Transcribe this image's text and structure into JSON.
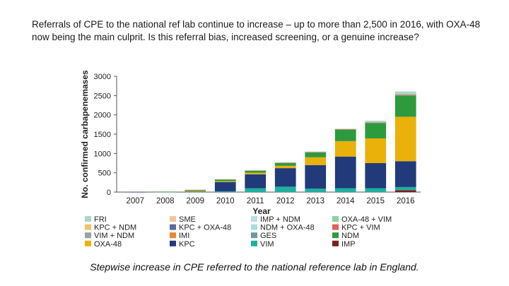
{
  "heading": "Referrals of CPE to the national ref lab continue to increase – up to more than 2,500 in 2016, with OXA-48 now being the main culprit. Is this referral bias, increased screening, or a genuine increase?",
  "caption": "Stepwise increase in CPE referred to the national reference lab in England.",
  "chart_data": {
    "type": "bar",
    "stacked": true,
    "xlabel": "Year",
    "ylabel": "No. confirmed carbapenemases",
    "ylim": [
      0,
      3000
    ],
    "yticks": [
      0,
      500,
      1000,
      1500,
      2000,
      2500,
      3000
    ],
    "grid": false,
    "legend_position": "bottom",
    "categories": [
      "2007",
      "2008",
      "2009",
      "2010",
      "2011",
      "2012",
      "2013",
      "2014",
      "2015",
      "2016"
    ],
    "series": [
      {
        "name": "IMP",
        "color": "#7b1e1e",
        "values": [
          0,
          0,
          0,
          0,
          0,
          0,
          0,
          0,
          0,
          50
        ]
      },
      {
        "name": "VIM",
        "color": "#1fb0a0",
        "values": [
          0,
          2,
          5,
          20,
          100,
          140,
          90,
          100,
          100,
          80
        ]
      },
      {
        "name": "KPC",
        "color": "#213a7a",
        "values": [
          2,
          5,
          10,
          240,
          360,
          480,
          610,
          820,
          650,
          670
        ]
      },
      {
        "name": "OXA-48",
        "color": "#e9b10a",
        "values": [
          0,
          2,
          20,
          20,
          40,
          60,
          200,
          400,
          640,
          1150
        ]
      },
      {
        "name": "NDM",
        "color": "#2e9a3e",
        "values": [
          0,
          3,
          20,
          50,
          60,
          80,
          130,
          300,
          400,
          550
        ]
      },
      {
        "name": "IMI",
        "color": "#e9872e",
        "values": [
          0,
          0,
          2,
          2,
          2,
          2,
          5,
          5,
          5,
          5
        ]
      },
      {
        "name": "GES",
        "color": "#6f9a9a",
        "values": [
          0,
          0,
          1,
          1,
          1,
          1,
          2,
          2,
          2,
          3
        ]
      },
      {
        "name": "VIM + NDM",
        "color": "#9aa3a3",
        "values": [
          0,
          0,
          0,
          1,
          1,
          1,
          2,
          2,
          3,
          5
        ]
      },
      {
        "name": "KPC + NDM",
        "color": "#f3c36a",
        "values": [
          0,
          0,
          0,
          1,
          1,
          1,
          2,
          2,
          3,
          5
        ]
      },
      {
        "name": "KPC + OXA-48",
        "color": "#5a6a9a",
        "values": [
          0,
          0,
          0,
          1,
          1,
          1,
          1,
          2,
          3,
          5
        ]
      },
      {
        "name": "NDM + OXA-48",
        "color": "#a8dede",
        "values": [
          0,
          0,
          0,
          1,
          1,
          2,
          2,
          3,
          5,
          10
        ]
      },
      {
        "name": "KPC + VIM",
        "color": "#e06060",
        "values": [
          0,
          0,
          0,
          0,
          0,
          1,
          1,
          1,
          1,
          2
        ]
      },
      {
        "name": "OXA-48 + VIM",
        "color": "#8fd0a0",
        "values": [
          0,
          0,
          0,
          0,
          1,
          1,
          2,
          2,
          3,
          5
        ]
      },
      {
        "name": "IMP + NDM",
        "color": "#bcdde8",
        "values": [
          0,
          0,
          0,
          0,
          0,
          1,
          1,
          1,
          2,
          3
        ]
      },
      {
        "name": "SME",
        "color": "#f5c49a",
        "values": [
          0,
          0,
          0,
          1,
          1,
          1,
          1,
          2,
          2,
          2
        ]
      },
      {
        "name": "FRI",
        "color": "#a8d8c8",
        "values": [
          0,
          0,
          0,
          0,
          0,
          0,
          0,
          0,
          30,
          60
        ]
      }
    ],
    "legend_rows": [
      [
        "FRI",
        "SME",
        "IMP + NDM",
        "OXA-48 + VIM"
      ],
      [
        "KPC + NDM",
        "KPC + OXA-48",
        "NDM + OXA-48",
        "KPC + VIM"
      ],
      [
        "VIM + NDM",
        "IMI",
        "GES",
        "NDM"
      ],
      [
        "OXA-48",
        "KPC",
        "VIM",
        "IMP"
      ]
    ]
  }
}
